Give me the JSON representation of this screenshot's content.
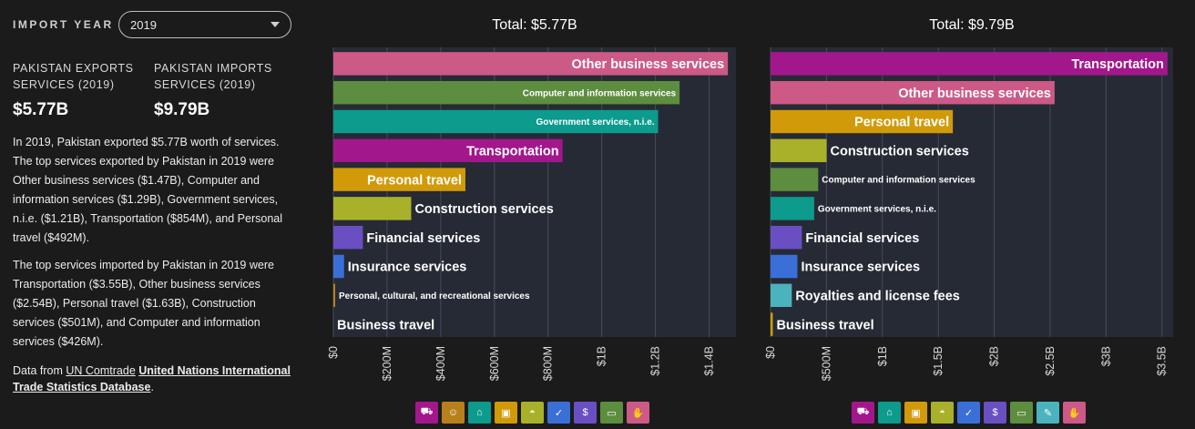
{
  "sidebar": {
    "year_label": "IMPORT YEAR",
    "year_value": "2019",
    "exports_label": "PAKISTAN EXPORTS SERVICES (2019)",
    "exports_value": "$5.77B",
    "imports_label": "PAKISTAN IMPORTS SERVICES (2019)",
    "imports_value": "$9.79B",
    "para1": "In 2019, Pakistan exported $5.77B worth of services. The top services exported by Pakistan in 2019 were Other business services ($1.47B), Computer and information services ($1.29B), Government services, n.i.e. ($1.21B), Transportation ($854M), and Personal travel ($492M).",
    "para2": "The top services imported by Pakistan in 2019 were Transportation ($3.55B), Other business services ($2.54B), Personal travel ($1.63B), Construction services ($501M), and Computer and information services ($426M).",
    "source_prefix": "Data from ",
    "source_link1": "UN Comtrade",
    "source_link2": "United Nations International Trade Statistics Database",
    "source_suffix": "."
  },
  "colors": {
    "Other business services": "#cd5987",
    "Computer and information services": "#5d8d3e",
    "Government services, n.i.e.": "#0c9b8c",
    "Transportation": "#a3178c",
    "Personal travel": "#d19a09",
    "Construction services": "#a9b12a",
    "Financial services": "#6a4fc2",
    "Insurance services": "#3a6fd8",
    "Personal, cultural, and recreational services": "#b8801c",
    "Business travel": "#d19a09",
    "Royalties and license fees": "#4bb3bd"
  },
  "chart_data": [
    {
      "type": "bar",
      "orientation": "horizontal",
      "title": "Total: $5.77B",
      "categories": [
        "Other business services",
        "Computer and information services",
        "Government services, n.i.e.",
        "Transportation",
        "Personal travel",
        "Construction services",
        "Financial services",
        "Insurance services",
        "Personal, cultural, and recreational services",
        "Business travel"
      ],
      "values": [
        1470000000,
        1290000000,
        1210000000,
        854000000,
        492000000,
        290000000,
        110000000,
        40000000,
        5000000,
        0
      ],
      "xlim": [
        0,
        1500000000
      ],
      "xticks": [
        0,
        200000000,
        400000000,
        600000000,
        800000000,
        1000000000,
        1200000000,
        1400000000
      ],
      "xtick_labels": [
        "$0",
        "$200M",
        "$400M",
        "$600M",
        "$800M",
        "$1B",
        "$1.2B",
        "$1.4B"
      ],
      "grid": true
    },
    {
      "type": "bar",
      "orientation": "horizontal",
      "title": "Total: $9.79B",
      "categories": [
        "Transportation",
        "Other business services",
        "Personal travel",
        "Construction services",
        "Computer and information services",
        "Government services, n.i.e.",
        "Financial services",
        "Insurance services",
        "Royalties and license fees",
        "Business travel"
      ],
      "values": [
        3550000000,
        2540000000,
        1630000000,
        501000000,
        426000000,
        390000000,
        280000000,
        240000000,
        190000000,
        20000000
      ],
      "xlim": [
        0,
        3600000000
      ],
      "xticks": [
        0,
        500000000,
        1000000000,
        1500000000,
        2000000000,
        2500000000,
        3000000000,
        3500000000
      ],
      "xtick_labels": [
        "$0",
        "$500M",
        "$1B",
        "$1.5B",
        "$2B",
        "$2.5B",
        "$3B",
        "$3.5B"
      ],
      "grid": true
    }
  ],
  "legends": [
    {
      "items": [
        {
          "name": "transportation-legend",
          "icon": "truck-icon",
          "glyph": "⛟",
          "color": "#a3178c"
        },
        {
          "name": "personal-cultural-legend",
          "icon": "theater-masks-icon",
          "glyph": "☺",
          "color": "#b8801c"
        },
        {
          "name": "government-legend",
          "icon": "bank-building-icon",
          "glyph": "⌂",
          "color": "#0c9b8c"
        },
        {
          "name": "travel-legend",
          "icon": "suitcase-icon",
          "glyph": "▣",
          "color": "#d19a09"
        },
        {
          "name": "construction-legend",
          "icon": "hard-hat-icon",
          "glyph": "◓",
          "color": "#a9b12a"
        },
        {
          "name": "insurance-legend",
          "icon": "shield-icon",
          "glyph": "✓",
          "color": "#3a6fd8"
        },
        {
          "name": "financial-legend",
          "icon": "dollar-coin-icon",
          "glyph": "$",
          "color": "#6a4fc2"
        },
        {
          "name": "computer-legend",
          "icon": "monitor-icon",
          "glyph": "▭",
          "color": "#5d8d3e"
        },
        {
          "name": "business-legend",
          "icon": "handshake-icon",
          "glyph": "✋",
          "color": "#cd5987"
        }
      ]
    },
    {
      "items": [
        {
          "name": "transportation-legend",
          "icon": "truck-icon",
          "glyph": "⛟",
          "color": "#a3178c"
        },
        {
          "name": "government-legend",
          "icon": "bank-building-icon",
          "glyph": "⌂",
          "color": "#0c9b8c"
        },
        {
          "name": "travel-legend",
          "icon": "suitcase-icon",
          "glyph": "▣",
          "color": "#d19a09"
        },
        {
          "name": "construction-legend",
          "icon": "hard-hat-icon",
          "glyph": "◓",
          "color": "#a9b12a"
        },
        {
          "name": "insurance-legend",
          "icon": "shield-icon",
          "glyph": "✓",
          "color": "#3a6fd8"
        },
        {
          "name": "financial-legend",
          "icon": "dollar-coin-icon",
          "glyph": "$",
          "color": "#6a4fc2"
        },
        {
          "name": "computer-legend",
          "icon": "monitor-icon",
          "glyph": "▭",
          "color": "#5d8d3e"
        },
        {
          "name": "royalties-legend",
          "icon": "hand-license-icon",
          "glyph": "✎",
          "color": "#4bb3bd"
        },
        {
          "name": "business-legend",
          "icon": "handshake-icon",
          "glyph": "✋",
          "color": "#cd5987"
        }
      ]
    }
  ]
}
